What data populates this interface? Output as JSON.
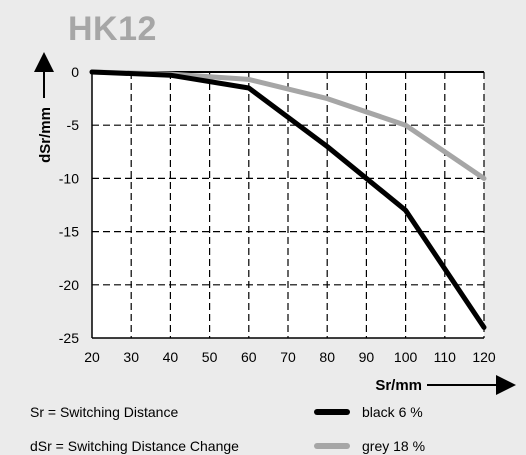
{
  "chart_data": {
    "type": "line",
    "title": "HK12",
    "xlabel": "Sr/mm",
    "ylabel": "dSr/mm",
    "xlim": [
      20,
      120
    ],
    "ylim": [
      -25,
      0
    ],
    "x_ticks": [
      20,
      30,
      40,
      50,
      60,
      70,
      80,
      90,
      100,
      110,
      120
    ],
    "y_ticks": [
      0,
      -5,
      -10,
      -15,
      -20,
      -25
    ],
    "grid": true,
    "series": [
      {
        "name": "black 6 %",
        "color": "#000000",
        "x": [
          20,
          40,
          60,
          80,
          100,
          120
        ],
        "values": [
          0,
          -0.3,
          -1.5,
          -7,
          -13,
          -24
        ]
      },
      {
        "name": "grey 18 %",
        "color": "#a6a6a6",
        "x": [
          20,
          40,
          60,
          80,
          100,
          120
        ],
        "values": [
          0,
          -0.2,
          -0.7,
          -2.5,
          -5,
          -10
        ]
      }
    ],
    "notes": [
      "Sr = Switching Distance",
      "dSr = Switching Distance Change"
    ]
  }
}
